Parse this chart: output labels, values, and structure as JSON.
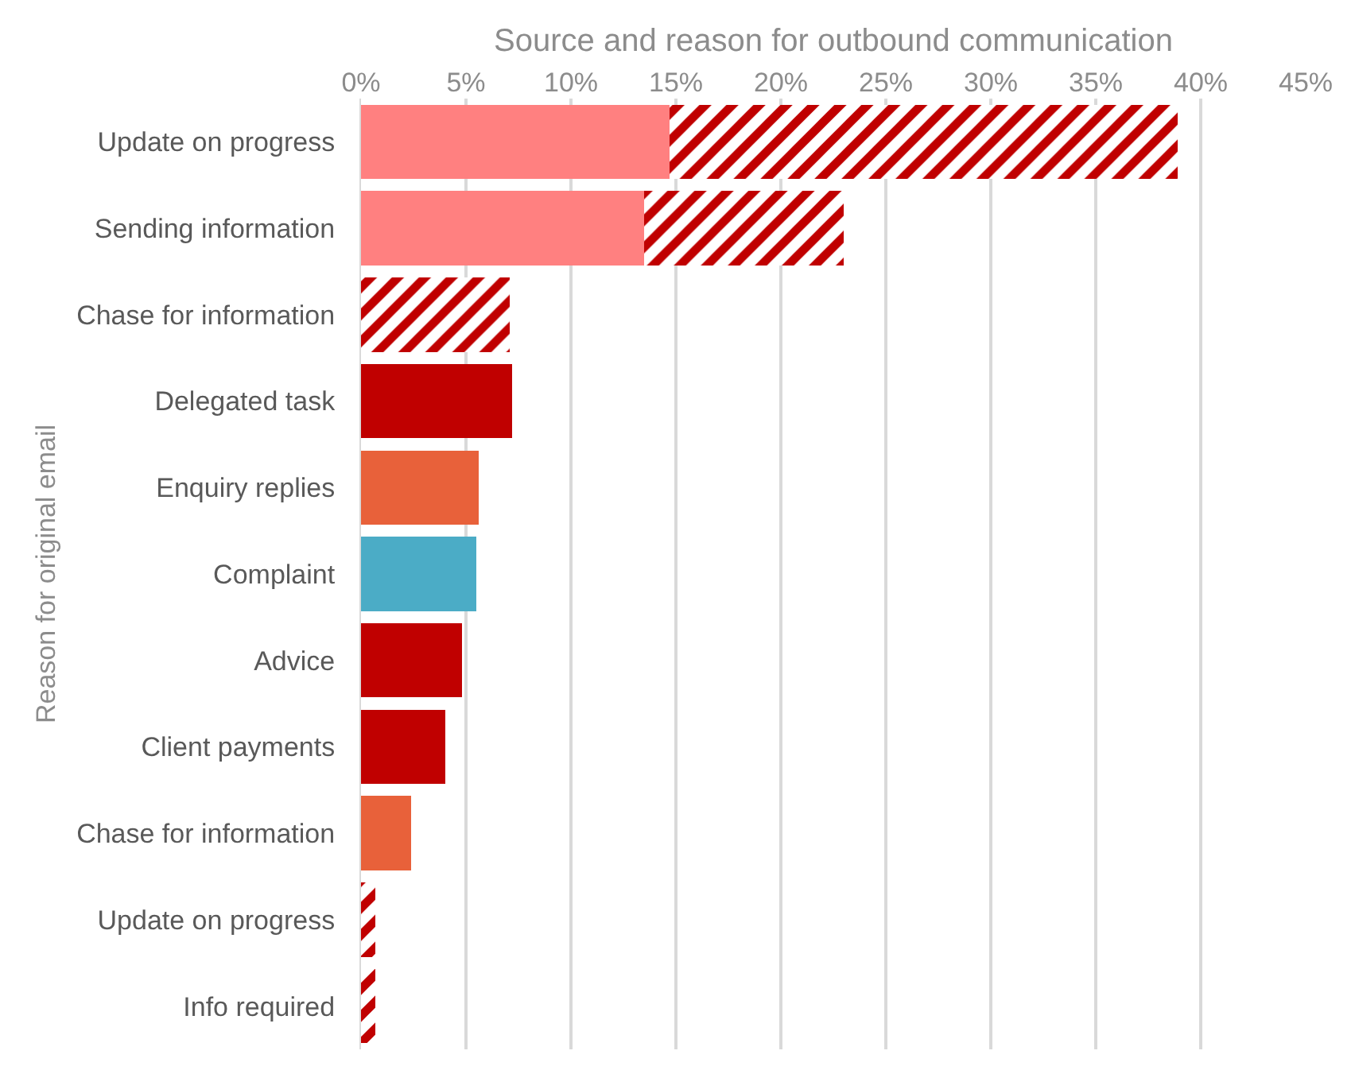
{
  "chart_data": {
    "type": "bar",
    "orientation": "horizontal",
    "stacked": true,
    "xlabel": "Source and reason for outbound communication",
    "ylabel": "Reason for original email",
    "categories": [
      "Update on progress",
      "Sending information",
      "Chase for information",
      "Delegated task",
      "Enquiry replies",
      "Complaint",
      "Advice",
      "Client payments",
      "Chase for information",
      "Update on progress",
      "Info required"
    ],
    "series": [
      {
        "color": "#ff8080",
        "values": [
          14.7,
          13.5,
          null,
          null,
          null,
          null,
          null,
          null,
          null,
          null,
          null
        ]
      },
      {
        "color": "#c00000",
        "values": [
          24.2,
          9.5,
          7.1,
          null,
          null,
          null,
          null,
          null,
          null,
          0.7,
          0.7
        ]
      },
      {
        "color": "#c00000",
        "values": [
          null,
          null,
          null,
          7.2,
          null,
          null,
          4.8,
          4.0,
          null,
          null,
          null
        ]
      },
      {
        "color": "#e8613a",
        "values": [
          null,
          null,
          null,
          null,
          5.6,
          null,
          null,
          null,
          2.4,
          null,
          null
        ]
      },
      {
        "color": "#4bacc6",
        "values": [
          null,
          null,
          null,
          null,
          null,
          5.5,
          null,
          null,
          null,
          null,
          null
        ]
      }
    ],
    "xlim": [
      0,
      45
    ],
    "xticks": [
      {
        "value": 0,
        "label": "0%"
      },
      {
        "value": 5,
        "label": "5%"
      },
      {
        "value": 10,
        "label": "10%"
      },
      {
        "value": 15,
        "label": "15%"
      },
      {
        "value": 20,
        "label": "20%"
      },
      {
        "value": 25,
        "label": "25%"
      },
      {
        "value": 30,
        "label": "30%"
      },
      {
        "value": 35,
        "label": "35%"
      },
      {
        "value": 40,
        "label": "40%"
      },
      {
        "value": 45,
        "label": "45%"
      }
    ],
    "grid": "x"
  }
}
